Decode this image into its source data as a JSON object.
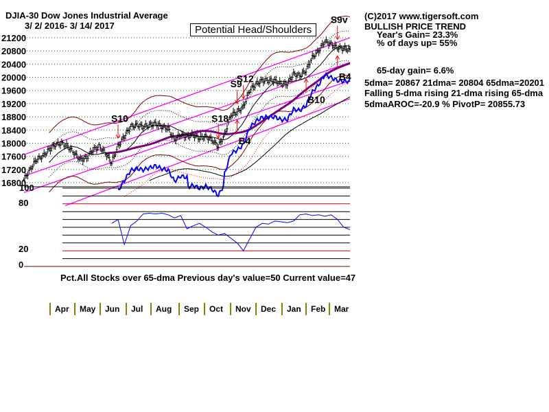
{
  "header": {
    "symbol_title": "DJIA-30  Dow Jones Industrial Average",
    "date_range": "3/ 2/ 2016- 3/ 14/ 2017",
    "pattern_box": "Potential Head/Shoulders"
  },
  "stats": {
    "copyright": "(C)2017 www.tigersoft.com",
    "trend": "BULLISH PRICE TREND",
    "year_gain": "Year's Gain= 23.3%",
    "days_up": "% of days up= 55%",
    "gain_65": "65-day gain= 6.6%",
    "mas": "5dma= 20867 21dma= 20804 65dma=20201",
    "ma_dirs": "Falling 5-dma  rising 21-dma  rising 65-dma",
    "aroc": "5dmaAROC=-20.9 %  PivotP= 20855.73"
  },
  "lower_panel": {
    "caption": "Pct.All Stocks over 65-dma   Previous day's value=50   Current value=47",
    "tick_labels": [
      "100",
      "80",
      "20",
      "0"
    ]
  },
  "months": [
    "Apr",
    "May",
    "Jun",
    "Jul",
    "Aug",
    "Sep",
    "Oct",
    "Nov",
    "Dec",
    "Jan",
    "Feb",
    "Mar"
  ],
  "colors": {
    "price": "#000000",
    "band": "#800000",
    "channel": "#ff00ff",
    "ma65": "#800080",
    "blue": "#0000ff",
    "signal": "#ff0000",
    "grid": "#008000"
  },
  "chart_data": {
    "type": "line",
    "title": "DJIA-30 Dow Jones Industrial Average",
    "y_ticks": [
      21200,
      20800,
      20400,
      20000,
      19600,
      19200,
      18800,
      18400,
      18000,
      17600,
      17200,
      16800
    ],
    "ylim": [
      16700,
      21300
    ],
    "weekly_closes": [
      16900,
      17200,
      17500,
      17600,
      17800,
      17950,
      18000,
      17900,
      17700,
      17500,
      17550,
      17800,
      17900,
      17700,
      17400,
      17900,
      18200,
      18500,
      18550,
      18500,
      18550,
      18600,
      18500,
      18450,
      18100,
      18250,
      18200,
      18250,
      18150,
      18200,
      18100,
      17900,
      18250,
      18850,
      18950,
      19100,
      19600,
      19800,
      19900,
      19900,
      19900,
      19800,
      19800,
      20100,
      20050,
      20200,
      20600,
      20800,
      21100,
      21000,
      20900,
      20870,
      20850
    ],
    "signals": [
      {
        "label": "S10",
        "week": 15,
        "type": "sell"
      },
      {
        "label": "S18",
        "week": 31,
        "type": "sell"
      },
      {
        "label": "S9",
        "week": 34,
        "type": "sell"
      },
      {
        "label": "S12",
        "week": 35,
        "type": "sell"
      },
      {
        "label": "B4",
        "week": 34,
        "type": "buy"
      },
      {
        "label": "B10",
        "week": 45,
        "type": "buy"
      },
      {
        "label": "B4",
        "week": 50,
        "type": "buy"
      },
      {
        "label": "S9v",
        "week": 50,
        "type": "sell"
      }
    ],
    "pct_over_65dma": {
      "start_week": 14,
      "values": [
        55,
        60,
        28,
        52,
        58,
        67,
        68,
        67,
        68,
        66,
        62,
        65,
        48,
        52,
        55,
        50,
        44,
        40,
        42,
        36,
        30,
        20,
        35,
        50,
        55,
        54,
        58,
        57,
        56,
        58,
        66,
        67,
        65,
        66,
        64,
        66,
        60,
        50,
        47
      ],
      "ylim": [
        0,
        100
      ],
      "reference_lines": [
        20,
        80
      ]
    }
  }
}
